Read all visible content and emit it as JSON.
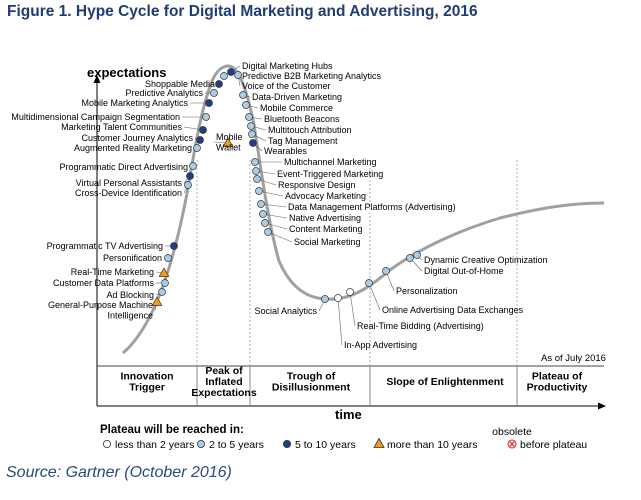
{
  "title": "Figure 1. Hype Cycle for Digital Marketing and Advertising, 2016",
  "y_axis_label": "expectations",
  "x_axis_label": "time",
  "as_of": "As of July 2016",
  "source": "Source: Gartner (October 2016)",
  "phases": [
    {
      "lines": [
        "Innovation",
        "Trigger"
      ]
    },
    {
      "lines": [
        "Peak of",
        "Inflated",
        "Expectations"
      ]
    },
    {
      "lines": [
        "Trough of",
        "Disillusionment"
      ]
    },
    {
      "lines": [
        "Slope of Enlightenment"
      ]
    },
    {
      "lines": [
        "Plateau of",
        "Productivity"
      ]
    }
  ],
  "legend": {
    "title": "Plateau will be reached in:",
    "items": [
      {
        "label": "less than 2 years",
        "marker": "circle",
        "color": "#ffffff"
      },
      {
        "label": "2 to 5 years",
        "marker": "circle",
        "color": "#a9cce8"
      },
      {
        "label": "5 to 10 years",
        "marker": "circle",
        "color": "#1d3f86"
      },
      {
        "label": "more than 10 years",
        "marker": "triangle",
        "color": "#f39c12"
      },
      {
        "label_lines": [
          "obsolete",
          "before plateau"
        ],
        "marker": "cross",
        "color": "#e03030"
      }
    ]
  },
  "colors": {
    "title": "#1f3c76",
    "curve": "#a0a0a0",
    "less_than_2": "#ffffff",
    "two_to_5": "#a9cce8",
    "five_to_10": "#1d3f86",
    "more_than_10": "#f39c12",
    "obsolete": "#e03030"
  },
  "technologies": [
    {
      "label": "General-Purpose Machine Intelligence",
      "lines": [
        "General-Purpose Machine",
        "Intelligence"
      ],
      "phase": "Innovation Trigger",
      "plateau": "more than 10 years"
    },
    {
      "label": "Ad Blocking",
      "phase": "Innovation Trigger",
      "plateau": "2 to 5 years"
    },
    {
      "label": "Customer Data Platforms",
      "phase": "Innovation Trigger",
      "plateau": "2 to 5 years"
    },
    {
      "label": "Real-Time Marketing",
      "phase": "Innovation Trigger",
      "plateau": "more than 10 years"
    },
    {
      "label": "Personification",
      "phase": "Innovation Trigger",
      "plateau": "2 to 5 years"
    },
    {
      "label": "Programmatic TV Advertising",
      "phase": "Innovation Trigger",
      "plateau": "5 to 10 years"
    },
    {
      "label": "Cross-Device Identification",
      "phase": "Innovation Trigger",
      "plateau": "2 to 5 years"
    },
    {
      "label": "Virtual Personal Assistants",
      "phase": "Innovation Trigger",
      "plateau": "5 to 10 years"
    },
    {
      "label": "Programmatic Direct Advertising",
      "phase": "Innovation Trigger",
      "plateau": "2 to 5 years"
    },
    {
      "label": "Augmented Reality Marketing",
      "phase": "Peak of Inflated Expectations",
      "plateau": "2 to 5 years"
    },
    {
      "label": "Customer Journey Analytics",
      "phase": "Peak of Inflated Expectations",
      "plateau": "5 to 10 years"
    },
    {
      "label": "Marketing Talent Communities",
      "phase": "Peak of Inflated Expectations",
      "plateau": "5 to 10 years"
    },
    {
      "label": "Multidimensional Campaign Segmentation",
      "phase": "Peak of Inflated Expectations",
      "plateau": "2 to 5 years"
    },
    {
      "label": "Mobile Marketing Analytics",
      "phase": "Peak of Inflated Expectations",
      "plateau": "5 to 10 years"
    },
    {
      "label": "Predictive Analytics",
      "phase": "Peak of Inflated Expectations",
      "plateau": "2 to 5 years"
    },
    {
      "label": "Shoppable Media",
      "phase": "Peak of Inflated Expectations",
      "plateau": "5 to 10 years"
    },
    {
      "label": "Digital Marketing Hubs",
      "phase": "Peak of Inflated Expectations",
      "plateau": "2 to 5 years"
    },
    {
      "label": "Predictive B2B Marketing Analytics",
      "phase": "Peak of Inflated Expectations",
      "plateau": "5 to 10 years"
    },
    {
      "label": "Voice of the Customer",
      "phase": "Peak of Inflated Expectations",
      "plateau": "2 to 5 years"
    },
    {
      "label": "Mobile Wallet",
      "lines": [
        "Mobile",
        "Wallet"
      ],
      "phase": "Peak of Inflated Expectations",
      "plateau": "more than 10 years"
    },
    {
      "label": "Data-Driven Marketing",
      "phase": "Peak of Inflated Expectations",
      "plateau": "2 to 5 years"
    },
    {
      "label": "Mobile Commerce",
      "phase": "Peak of Inflated Expectations",
      "plateau": "2 to 5 years"
    },
    {
      "label": "Bluetooth Beacons",
      "phase": "Trough of Disillusionment",
      "plateau": "2 to 5 years"
    },
    {
      "label": "Multitouch Attribution",
      "phase": "Trough of Disillusionment",
      "plateau": "2 to 5 years"
    },
    {
      "label": "Tag Management",
      "phase": "Trough of Disillusionment",
      "plateau": "2 to 5 years"
    },
    {
      "label": "Wearables",
      "phase": "Trough of Disillusionment",
      "plateau": "5 to 10 years"
    },
    {
      "label": "Multichannel Marketing",
      "phase": "Trough of Disillusionment",
      "plateau": "2 to 5 years"
    },
    {
      "label": "Event-Triggered Marketing",
      "phase": "Trough of Disillusionment",
      "plateau": "2 to 5 years"
    },
    {
      "label": "Responsive Design",
      "phase": "Trough of Disillusionment",
      "plateau": "2 to 5 years"
    },
    {
      "label": "Advocacy Marketing",
      "phase": "Trough of Disillusionment",
      "plateau": "2 to 5 years"
    },
    {
      "label": "Data Management Platforms (Advertising)",
      "phase": "Trough of Disillusionment",
      "plateau": "2 to 5 years"
    },
    {
      "label": "Native Advertising",
      "phase": "Trough of Disillusionment",
      "plateau": "2 to 5 years"
    },
    {
      "label": "Content Marketing",
      "phase": "Trough of Disillusionment",
      "plateau": "2 to 5 years"
    },
    {
      "label": "Social Marketing",
      "phase": "Trough of Disillusionment",
      "plateau": "2 to 5 years"
    },
    {
      "label": "Social Analytics",
      "phase": "Trough of Disillusionment",
      "plateau": "2 to 5 years"
    },
    {
      "label": "In-App Advertising",
      "phase": "Trough of Disillusionment",
      "plateau": "less than 2 years"
    },
    {
      "label": "Real-Time Bidding (Advertising)",
      "phase": "Trough of Disillusionment",
      "plateau": "less than 2 years"
    },
    {
      "label": "Online Advertising Data Exchanges",
      "phase": "Slope of Enlightenment",
      "plateau": "2 to 5 years"
    },
    {
      "label": "Personalization",
      "phase": "Slope of Enlightenment",
      "plateau": "2 to 5 years"
    },
    {
      "label": "Digital Out-of-Home",
      "phase": "Slope of Enlightenment",
      "plateau": "2 to 5 years"
    },
    {
      "label": "Dynamic Creative Optimization",
      "phase": "Slope of Enlightenment",
      "plateau": "2 to 5 years"
    }
  ]
}
